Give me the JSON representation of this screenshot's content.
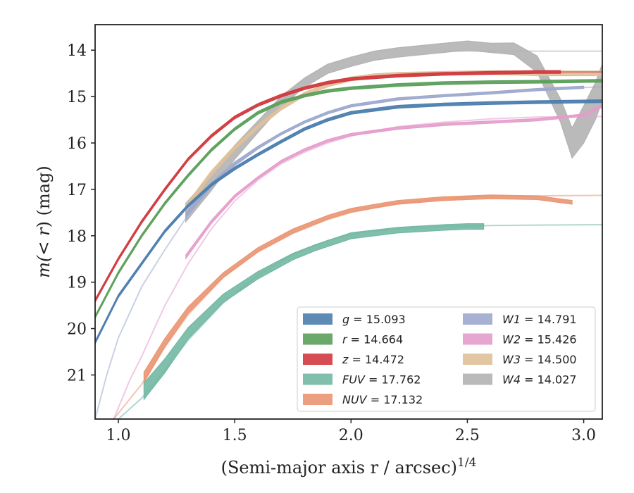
{
  "chart_data": {
    "type": "line",
    "xlabel": "(Semi-major axis r / arcsec)",
    "xlabel_sup": "1/4",
    "ylabel_pre": "m(",
    "ylabel_mid": "< r",
    "ylabel_post": ") (mag)",
    "xlim": [
      0.9,
      3.08
    ],
    "ylim": [
      21.95,
      13.45
    ],
    "y_inverted": true,
    "x_ticks": [
      1.0,
      1.5,
      2.0,
      2.5,
      3.0
    ],
    "x_tick_labels": [
      "1.0",
      "1.5",
      "2.0",
      "2.5",
      "3.0"
    ],
    "y_ticks": [
      14,
      15,
      16,
      17,
      18,
      19,
      20,
      21
    ],
    "y_tick_labels": [
      "14",
      "15",
      "16",
      "17",
      "18",
      "19",
      "20",
      "21"
    ],
    "grid": false,
    "legend_position": "lower-right",
    "legend": [
      {
        "band": "g",
        "value": "15.093"
      },
      {
        "band": "r",
        "value": "14.664"
      },
      {
        "band": "z",
        "value": "14.472"
      },
      {
        "band": "FUV",
        "value": "17.762"
      },
      {
        "band": "NUV",
        "value": "17.132"
      },
      {
        "band": "W1",
        "value": "14.791"
      },
      {
        "band": "W2",
        "value": "15.426"
      },
      {
        "band": "W3",
        "value": "14.500"
      },
      {
        "band": "W4",
        "value": "14.027"
      }
    ],
    "series": [
      {
        "name": "g",
        "color": "#4C7EAE",
        "observed": {
          "x": [
            0.9,
            1.0,
            1.1,
            1.2,
            1.3,
            1.4,
            1.5,
            1.6,
            1.7,
            1.8,
            1.9,
            2.0,
            2.2,
            2.4,
            2.6,
            2.8,
            3.08
          ],
          "y": [
            20.3,
            19.3,
            18.6,
            17.9,
            17.35,
            16.9,
            16.55,
            16.25,
            15.97,
            15.7,
            15.5,
            15.35,
            15.22,
            15.17,
            15.14,
            15.12,
            15.1
          ],
          "width": [
            0.06,
            0.06,
            0.06,
            0.06,
            0.06,
            0.06,
            0.06,
            0.06,
            0.06,
            0.06,
            0.06,
            0.06,
            0.06,
            0.06,
            0.06,
            0.06,
            0.06
          ]
        },
        "model": {
          "x": [
            0.9,
            1.0,
            1.1,
            1.2,
            1.3,
            1.4,
            1.5,
            1.6,
            1.7,
            1.8,
            1.9,
            2.0,
            2.2,
            2.4,
            2.6,
            2.8,
            3.08
          ],
          "y": [
            20.3,
            19.3,
            18.6,
            17.9,
            17.35,
            16.9,
            16.55,
            16.25,
            15.97,
            15.7,
            15.5,
            15.35,
            15.22,
            15.17,
            15.14,
            15.12,
            15.1
          ]
        }
      },
      {
        "name": "r",
        "color": "#5BA05B",
        "observed": {
          "x": [
            0.9,
            1.0,
            1.1,
            1.2,
            1.3,
            1.4,
            1.5,
            1.6,
            1.7,
            1.8,
            1.9,
            2.0,
            2.2,
            2.4,
            2.6,
            2.8,
            3.08
          ],
          "y": [
            19.75,
            18.8,
            18.0,
            17.3,
            16.7,
            16.15,
            15.7,
            15.35,
            15.12,
            14.98,
            14.88,
            14.82,
            14.75,
            14.71,
            14.69,
            14.68,
            14.66
          ],
          "width": [
            0.06,
            0.06,
            0.06,
            0.06,
            0.06,
            0.06,
            0.06,
            0.06,
            0.06,
            0.06,
            0.06,
            0.06,
            0.06,
            0.06,
            0.06,
            0.06,
            0.06
          ]
        },
        "model": {
          "x": [
            0.9,
            1.0,
            1.1,
            1.2,
            1.3,
            1.4,
            1.5,
            1.6,
            1.7,
            1.8,
            1.9,
            2.0,
            2.2,
            2.4,
            2.6,
            2.8,
            3.08
          ],
          "y": [
            19.75,
            18.8,
            18.0,
            17.3,
            16.7,
            16.15,
            15.7,
            15.35,
            15.12,
            14.98,
            14.88,
            14.82,
            14.75,
            14.71,
            14.69,
            14.68,
            14.66
          ]
        }
      },
      {
        "name": "z",
        "color": "#D03A3F",
        "observed": {
          "x": [
            0.9,
            1.0,
            1.1,
            1.2,
            1.3,
            1.4,
            1.5,
            1.6,
            1.7,
            1.8,
            1.9,
            2.0,
            2.2,
            2.4,
            2.6,
            2.8,
            2.9
          ],
          "y": [
            19.4,
            18.5,
            17.7,
            17.0,
            16.35,
            15.85,
            15.45,
            15.18,
            14.98,
            14.82,
            14.7,
            14.62,
            14.55,
            14.51,
            14.49,
            14.47,
            14.47
          ],
          "width": [
            0.06,
            0.06,
            0.06,
            0.06,
            0.06,
            0.06,
            0.06,
            0.06,
            0.06,
            0.06,
            0.06,
            0.06,
            0.06,
            0.06,
            0.06,
            0.06,
            0.06
          ]
        },
        "model": {
          "x": [
            0.9,
            1.0,
            1.1,
            1.2,
            1.3,
            1.4,
            1.5,
            1.6,
            1.7,
            1.8,
            1.9,
            2.0,
            2.2,
            2.4,
            2.6,
            2.8,
            3.08
          ],
          "y": [
            19.4,
            18.5,
            17.7,
            17.0,
            16.35,
            15.85,
            15.45,
            15.18,
            14.98,
            14.82,
            14.7,
            14.62,
            14.55,
            14.51,
            14.49,
            14.47,
            14.47
          ]
        }
      },
      {
        "name": "FUV",
        "color": "#72B8A3",
        "observed": {
          "x": [
            1.11,
            1.2,
            1.3,
            1.45,
            1.6,
            1.75,
            1.85,
            2.0,
            2.2,
            2.4,
            2.5,
            2.57
          ],
          "y": [
            21.35,
            20.8,
            20.1,
            19.35,
            18.85,
            18.45,
            18.25,
            18.0,
            17.88,
            17.82,
            17.8,
            17.8
          ],
          "width": [
            0.35,
            0.3,
            0.24,
            0.18,
            0.16,
            0.14,
            0.13,
            0.13,
            0.12,
            0.12,
            0.12,
            0.12
          ]
        },
        "model": {
          "x": [
            1.0,
            1.1,
            1.2,
            1.3,
            1.45,
            1.6,
            1.75,
            1.9,
            2.05,
            2.2,
            2.4,
            2.6,
            2.8,
            3.08
          ],
          "y": [
            21.95,
            21.5,
            20.9,
            20.25,
            19.45,
            18.85,
            18.4,
            18.1,
            17.92,
            17.85,
            17.8,
            17.78,
            17.77,
            17.76
          ]
        }
      },
      {
        "name": "NUV",
        "color": "#EA9572",
        "observed": {
          "x": [
            1.11,
            1.2,
            1.3,
            1.45,
            1.6,
            1.75,
            1.9,
            2.0,
            2.2,
            2.4,
            2.6,
            2.8,
            2.95
          ],
          "y": [
            21.05,
            20.3,
            19.6,
            18.85,
            18.3,
            17.9,
            17.6,
            17.45,
            17.28,
            17.2,
            17.16,
            17.18,
            17.28
          ],
          "width": [
            0.22,
            0.18,
            0.14,
            0.1,
            0.09,
            0.09,
            0.08,
            0.08,
            0.08,
            0.08,
            0.08,
            0.08,
            0.08
          ]
        },
        "model": {
          "x": [
            0.98,
            1.1,
            1.2,
            1.3,
            1.45,
            1.6,
            1.75,
            1.9,
            2.0,
            2.2,
            2.4,
            2.6,
            2.8,
            3.08
          ],
          "y": [
            21.95,
            21.2,
            20.4,
            19.7,
            18.9,
            18.35,
            17.95,
            17.65,
            17.5,
            17.3,
            17.2,
            17.15,
            17.14,
            17.13
          ]
        }
      },
      {
        "name": "W1",
        "color": "#9DA9CE",
        "observed": {
          "x": [
            1.29,
            1.4,
            1.5,
            1.6,
            1.7,
            1.8,
            1.9,
            2.0,
            2.2,
            2.4,
            2.6,
            2.8,
            3.0
          ],
          "y": [
            17.55,
            16.9,
            16.45,
            16.1,
            15.8,
            15.55,
            15.35,
            15.2,
            15.05,
            14.98,
            14.92,
            14.85,
            14.8
          ],
          "width": [
            0.1,
            0.09,
            0.08,
            0.06,
            0.05,
            0.05,
            0.05,
            0.05,
            0.05,
            0.05,
            0.05,
            0.05,
            0.05
          ]
        },
        "model": {
          "x": [
            0.9,
            0.95,
            1.0,
            1.1,
            1.2,
            1.3,
            1.4,
            1.5,
            1.6,
            1.7,
            1.8,
            1.9,
            2.0,
            2.2,
            2.4,
            2.6,
            2.8,
            3.08
          ],
          "y": [
            21.95,
            21.0,
            20.2,
            19.1,
            18.3,
            17.55,
            16.95,
            16.45,
            16.1,
            15.8,
            15.55,
            15.35,
            15.2,
            15.05,
            14.98,
            14.92,
            14.85,
            14.79
          ]
        }
      },
      {
        "name": "W2",
        "color": "#E49CCB",
        "observed": {
          "x": [
            1.29,
            1.4,
            1.5,
            1.6,
            1.7,
            1.8,
            1.9,
            2.0,
            2.2,
            2.4,
            2.6,
            2.8,
            3.0,
            3.08
          ],
          "y": [
            18.45,
            17.7,
            17.15,
            16.75,
            16.4,
            16.15,
            15.95,
            15.82,
            15.68,
            15.6,
            15.55,
            15.5,
            15.4,
            15.2
          ],
          "width": [
            0.08,
            0.07,
            0.06,
            0.05,
            0.05,
            0.05,
            0.05,
            0.05,
            0.05,
            0.05,
            0.05,
            0.05,
            0.05,
            0.06
          ]
        },
        "model": {
          "x": [
            0.98,
            1.05,
            1.1,
            1.2,
            1.3,
            1.4,
            1.5,
            1.6,
            1.7,
            1.8,
            1.9,
            2.0,
            2.2,
            2.4,
            2.6,
            2.8,
            3.08
          ],
          "y": [
            21.95,
            21.1,
            20.6,
            19.5,
            18.6,
            17.85,
            17.25,
            16.8,
            16.45,
            16.2,
            16.0,
            15.85,
            15.65,
            15.55,
            15.48,
            15.44,
            15.43
          ]
        }
      },
      {
        "name": "W3",
        "color": "#DFC09A",
        "observed": {
          "x": [
            1.29,
            1.4,
            1.5,
            1.6,
            1.7,
            1.8,
            1.9,
            2.0,
            2.1,
            2.2,
            2.4,
            2.6,
            2.8,
            3.08
          ],
          "y": [
            17.4,
            16.65,
            16.1,
            15.65,
            15.25,
            14.95,
            14.75,
            14.62,
            14.55,
            14.52,
            14.5,
            14.48,
            14.5,
            14.5
          ],
          "width": [
            0.12,
            0.1,
            0.09,
            0.08,
            0.08,
            0.08,
            0.08,
            0.08,
            0.08,
            0.08,
            0.08,
            0.08,
            0.1,
            0.1
          ]
        },
        "model": {
          "x": [
            1.29,
            1.4,
            1.5,
            1.6,
            1.7,
            1.8,
            1.9,
            2.0,
            2.2,
            2.4,
            2.6,
            2.8,
            3.08
          ],
          "y": [
            17.4,
            16.65,
            16.1,
            15.65,
            15.25,
            14.95,
            14.75,
            14.62,
            14.52,
            14.5,
            14.5,
            14.5,
            14.5
          ]
        }
      },
      {
        "name": "W4",
        "color": "#B3B3B3",
        "observed": {
          "x": [
            1.29,
            1.4,
            1.5,
            1.6,
            1.7,
            1.8,
            1.9,
            2.0,
            2.1,
            2.2,
            2.3,
            2.4,
            2.5,
            2.6,
            2.7,
            2.8,
            2.9,
            2.95,
            3.0,
            3.05,
            3.08
          ],
          "y": [
            17.5,
            16.85,
            16.2,
            15.65,
            15.1,
            14.7,
            14.4,
            14.25,
            14.12,
            14.05,
            14.0,
            13.95,
            13.9,
            13.95,
            13.97,
            14.3,
            15.3,
            16.0,
            15.6,
            15.1,
            14.7
          ],
          "width": [
            0.4,
            0.35,
            0.3,
            0.25,
            0.22,
            0.2,
            0.2,
            0.2,
            0.2,
            0.2,
            0.2,
            0.2,
            0.2,
            0.2,
            0.25,
            0.35,
            0.5,
            0.65,
            0.8,
            0.8,
            0.8
          ]
        },
        "model": {
          "x": [
            2.4,
            2.6,
            2.8,
            3.08
          ],
          "y": [
            14.02,
            14.02,
            14.02,
            14.02
          ]
        }
      }
    ]
  }
}
